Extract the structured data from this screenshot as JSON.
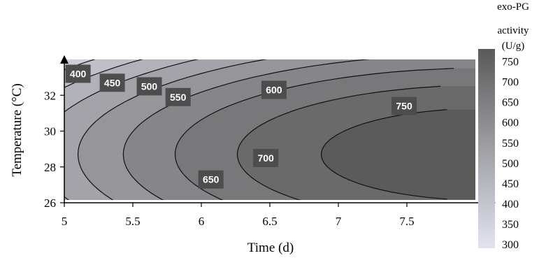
{
  "chart_data": {
    "type": "contour",
    "xlabel": "Time (d)",
    "ylabel": "Temperature (°C)",
    "xlim": [
      5,
      8
    ],
    "ylim": [
      26,
      34
    ],
    "x_ticks": [
      "5",
      "5.5",
      "6",
      "6.5",
      "7",
      "7.5"
    ],
    "y_ticks": [
      "26",
      "28",
      "30",
      "32"
    ],
    "levels": [
      400,
      450,
      500,
      550,
      600,
      650,
      700,
      750
    ],
    "contour_labels": [
      {
        "text": "400",
        "x": 5.1,
        "y": 33.2
      },
      {
        "text": "450",
        "x": 5.35,
        "y": 32.7
      },
      {
        "text": "500",
        "x": 5.62,
        "y": 32.5
      },
      {
        "text": "550",
        "x": 5.83,
        "y": 31.9
      },
      {
        "text": "600",
        "x": 6.53,
        "y": 32.3
      },
      {
        "text": "650",
        "x": 6.07,
        "y": 27.3
      },
      {
        "text": "700",
        "x": 6.47,
        "y": 28.5
      },
      {
        "text": "750",
        "x": 7.48,
        "y": 31.4
      }
    ],
    "colorbar": {
      "title": [
        "exo-PG",
        "activity",
        "(U/g)"
      ],
      "min": 300,
      "max": 780,
      "ticks": [
        "750",
        "700",
        "650",
        "600",
        "550",
        "500",
        "450",
        "400",
        "350",
        "300"
      ],
      "low_color": "#e3e3ef",
      "high_color": "#5a5a5a"
    }
  }
}
